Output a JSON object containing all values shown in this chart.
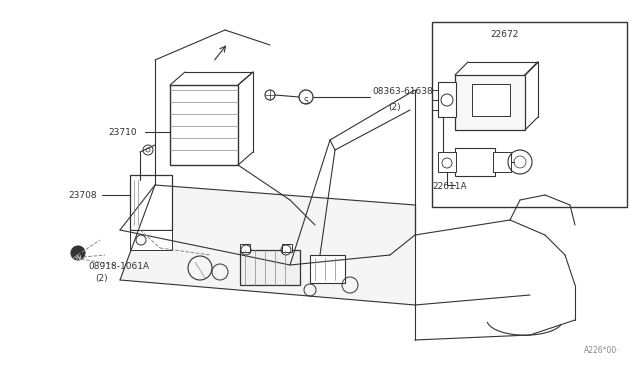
{
  "bg_color": "#ffffff",
  "lc": "#333333",
  "fig_width": 6.4,
  "fig_height": 3.72,
  "dpi": 100,
  "watermark": "A226*00·",
  "label_23710": "23710",
  "label_23708": "23708",
  "label_bolt1": "08363-61638",
  "label_bolt1_sub": "(2)",
  "label_bolt2": "08918-1061A",
  "label_bolt2_sub": "(2)",
  "label_22672": "22672",
  "label_22611A": "22611A"
}
